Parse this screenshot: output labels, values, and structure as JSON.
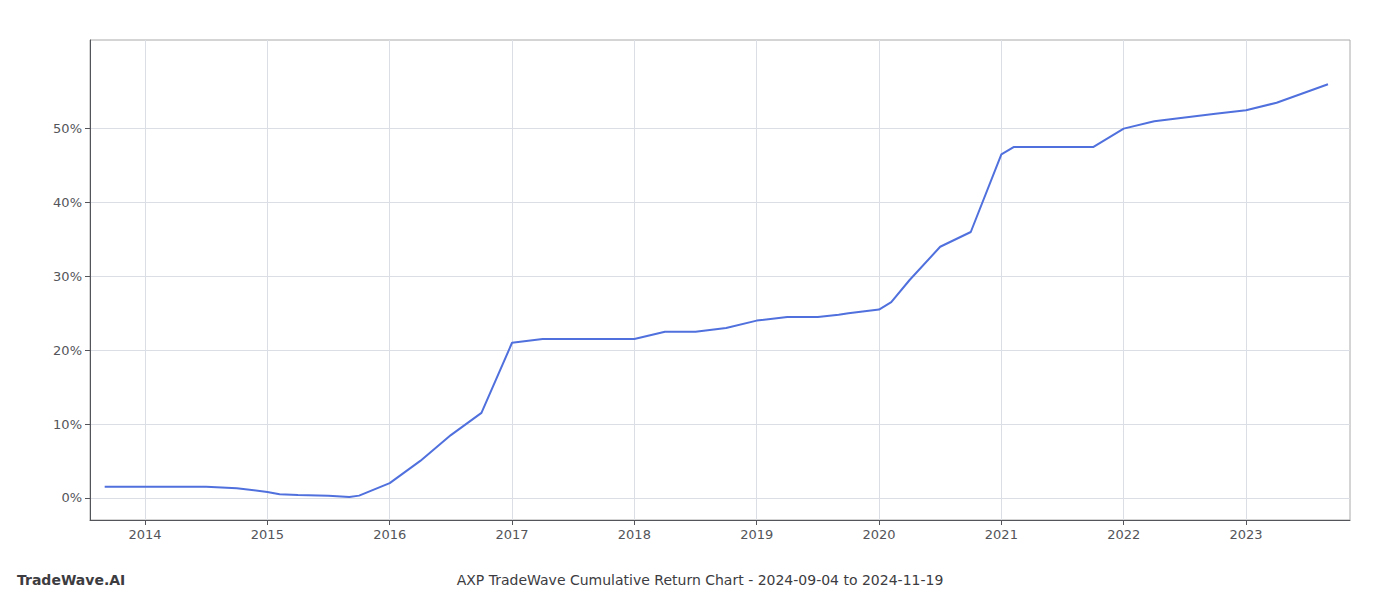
{
  "chart_data": {
    "type": "line",
    "title": "AXP TradeWave Cumulative Return Chart - 2024-09-04 to 2024-11-19",
    "annotations": [
      "TradeWave.AI"
    ],
    "x": [
      2013.67,
      2014.0,
      2014.25,
      2014.5,
      2014.75,
      2015.0,
      2015.1,
      2015.25,
      2015.5,
      2015.67,
      2015.75,
      2016.0,
      2016.25,
      2016.5,
      2016.75,
      2017.0,
      2017.25,
      2017.5,
      2017.75,
      2018.0,
      2018.25,
      2018.5,
      2018.75,
      2019.0,
      2019.25,
      2019.5,
      2019.67,
      2019.75,
      2020.0,
      2020.1,
      2020.25,
      2020.5,
      2020.75,
      2021.0,
      2021.1,
      2021.25,
      2021.5,
      2021.75,
      2022.0,
      2022.25,
      2022.5,
      2022.75,
      2023.0,
      2023.25,
      2023.5,
      2023.67
    ],
    "values": [
      1.5,
      1.5,
      1.5,
      1.5,
      1.3,
      0.8,
      0.5,
      0.4,
      0.3,
      0.1,
      0.3,
      2.0,
      5.0,
      8.5,
      11.5,
      21.0,
      21.5,
      21.5,
      21.5,
      21.5,
      22.5,
      22.5,
      23.0,
      24.0,
      24.5,
      24.5,
      24.8,
      25.0,
      25.5,
      26.5,
      29.5,
      34.0,
      36.0,
      46.5,
      47.5,
      47.5,
      47.5,
      47.5,
      50.0,
      51.0,
      51.5,
      52.0,
      52.5,
      53.5,
      55.0,
      56.0
    ],
    "xlim": [
      2013.55,
      2023.85
    ],
    "ylim": [
      -3,
      62
    ],
    "xticks": [
      2014,
      2015,
      2016,
      2017,
      2018,
      2019,
      2020,
      2021,
      2022,
      2023
    ],
    "yticks": [
      {
        "value": 0,
        "label": "0%"
      },
      {
        "value": 10,
        "label": "10%"
      },
      {
        "value": 20,
        "label": "20%"
      },
      {
        "value": 30,
        "label": "30%"
      },
      {
        "value": 40,
        "label": "40%"
      },
      {
        "value": 50,
        "label": "50%"
      }
    ],
    "grid": true
  }
}
